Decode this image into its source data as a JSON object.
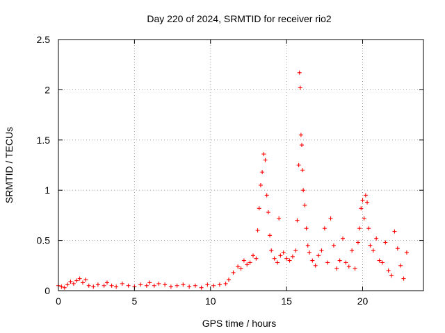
{
  "chart_data": {
    "type": "scatter",
    "title": "Day 220 of 2024, SRMTID for receiver rio2",
    "xlabel": "GPS time / hours",
    "ylabel": "SRMTID / TECUs",
    "xlim": [
      0,
      24
    ],
    "ylim": [
      0,
      2.5
    ],
    "xticks": [
      0,
      5,
      10,
      15,
      20
    ],
    "yticks": [
      0,
      0.5,
      1,
      1.5,
      2,
      2.5
    ],
    "xtick_labels": [
      "0",
      "5",
      "10",
      "15",
      "20"
    ],
    "ytick_labels": [
      "0",
      "0.5",
      "1",
      "1.5",
      "2",
      "2.5"
    ],
    "grid": true,
    "marker": "+",
    "color": "#ff0000",
    "series": [
      {
        "name": "rio2",
        "x": [
          0.0,
          0.2,
          0.4,
          0.6,
          0.8,
          1.0,
          1.2,
          1.4,
          1.6,
          1.8,
          2.0,
          2.3,
          2.6,
          3.0,
          3.2,
          3.5,
          3.8,
          4.2,
          4.6,
          5.0,
          5.4,
          5.8,
          6.0,
          6.3,
          6.6,
          7.0,
          7.4,
          7.8,
          8.2,
          8.6,
          9.0,
          9.4,
          9.8,
          10.2,
          10.6,
          11.0,
          11.2,
          11.5,
          11.8,
          12.0,
          12.2,
          12.4,
          12.6,
          12.8,
          13.0,
          13.1,
          13.2,
          13.3,
          13.4,
          13.5,
          13.6,
          13.7,
          13.8,
          13.9,
          14.0,
          14.2,
          14.4,
          14.5,
          14.6,
          14.8,
          15.0,
          15.2,
          15.4,
          15.6,
          15.7,
          15.8,
          15.85,
          15.9,
          15.95,
          16.0,
          16.05,
          16.1,
          16.2,
          16.3,
          16.4,
          16.5,
          16.7,
          16.9,
          17.1,
          17.3,
          17.5,
          17.7,
          17.9,
          18.1,
          18.3,
          18.5,
          18.7,
          18.9,
          19.1,
          19.3,
          19.5,
          19.7,
          19.8,
          19.9,
          20.0,
          20.1,
          20.2,
          20.3,
          20.4,
          20.5,
          20.7,
          20.9,
          21.1,
          21.3,
          21.5,
          21.7,
          21.9,
          22.1,
          22.3,
          22.5,
          22.7,
          22.9
        ],
        "y": [
          0.05,
          0.04,
          0.03,
          0.06,
          0.09,
          0.07,
          0.1,
          0.12,
          0.08,
          0.11,
          0.05,
          0.04,
          0.06,
          0.05,
          0.08,
          0.05,
          0.04,
          0.07,
          0.05,
          0.04,
          0.06,
          0.05,
          0.08,
          0.05,
          0.07,
          0.06,
          0.04,
          0.05,
          0.06,
          0.04,
          0.05,
          0.03,
          0.06,
          0.05,
          0.06,
          0.07,
          0.11,
          0.18,
          0.24,
          0.22,
          0.3,
          0.26,
          0.28,
          0.35,
          0.32,
          0.6,
          0.82,
          1.05,
          1.18,
          1.36,
          1.3,
          0.95,
          0.78,
          0.55,
          0.4,
          0.32,
          0.28,
          0.72,
          0.35,
          0.38,
          0.32,
          0.3,
          0.34,
          0.4,
          0.7,
          1.25,
          2.17,
          2.02,
          1.55,
          1.45,
          1.2,
          1.0,
          0.85,
          0.62,
          0.45,
          0.38,
          0.3,
          0.25,
          0.35,
          0.4,
          0.62,
          0.28,
          0.72,
          0.45,
          0.22,
          0.3,
          0.52,
          0.28,
          0.24,
          0.4,
          0.22,
          0.48,
          0.62,
          0.82,
          0.9,
          0.72,
          0.95,
          0.88,
          0.62,
          0.45,
          0.4,
          0.52,
          0.3,
          0.28,
          0.48,
          0.2,
          0.15,
          0.59,
          0.42,
          0.25,
          0.12,
          0.38
        ]
      }
    ]
  }
}
